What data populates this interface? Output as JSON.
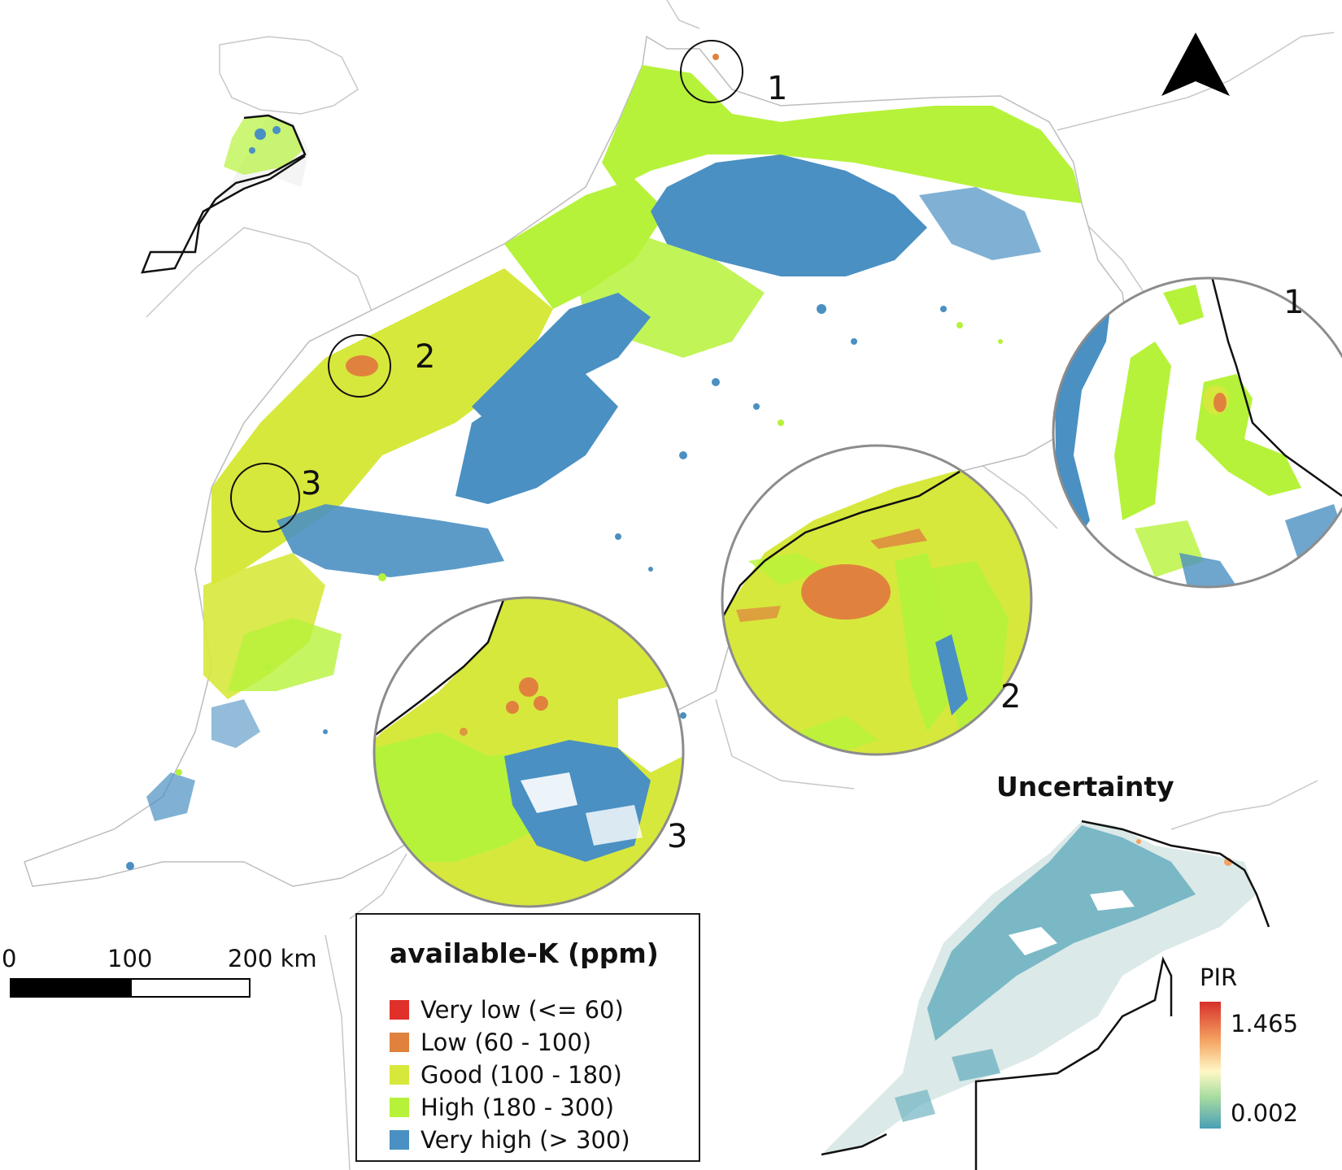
{
  "north_arrow": {
    "icon": "north-arrow-icon"
  },
  "zoom_markers": [
    {
      "label": "1"
    },
    {
      "label": "2"
    },
    {
      "label": "3"
    }
  ],
  "zoom_insets": [
    {
      "label": "1"
    },
    {
      "label": "2"
    },
    {
      "label": "3"
    }
  ],
  "legend": {
    "title": "available-K (ppm)",
    "items": [
      {
        "label": "Very low (<= 60)",
        "color": "#e0302a"
      },
      {
        "label": "Low (60 - 100)",
        "color": "#e0823e"
      },
      {
        "label": "Good (100 - 180)",
        "color": "#d7e83c"
      },
      {
        "label": "High (180 - 300)",
        "color": "#b6f23a"
      },
      {
        "label": "Very high (> 300)",
        "color": "#4a90c2"
      }
    ]
  },
  "scale_bar": {
    "labels": [
      "0",
      "100",
      "200 km"
    ]
  },
  "uncertainty": {
    "title": "Uncertainty",
    "colorbar_label": "PIR",
    "max_label": "1.465",
    "min_label": "0.002",
    "colors": [
      "#d7302b",
      "#f4a261",
      "#fff8c6",
      "#a8dca0",
      "#4a9fb6"
    ]
  }
}
